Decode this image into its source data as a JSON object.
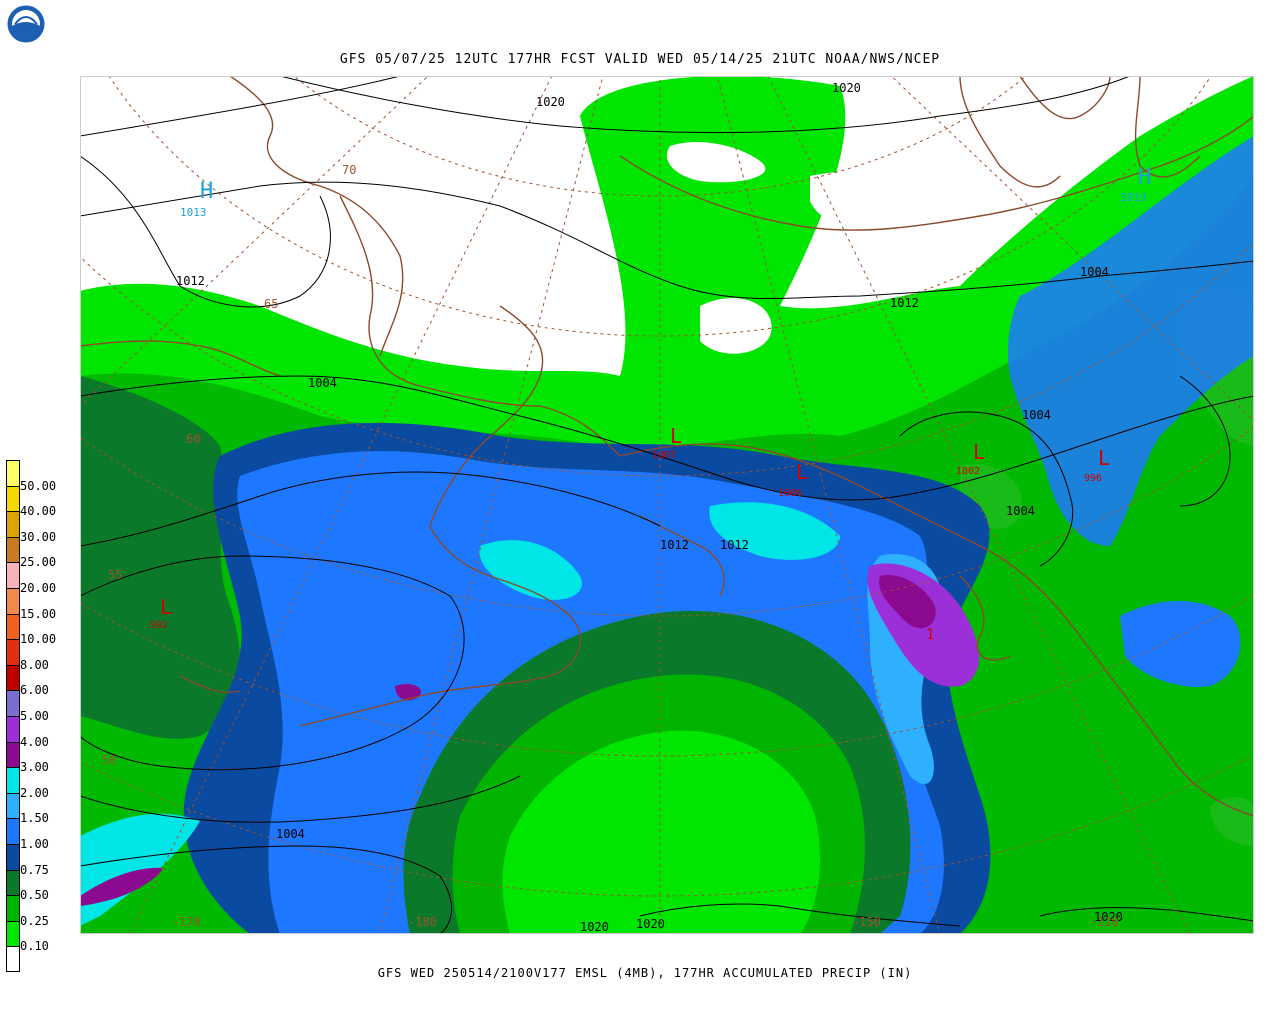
{
  "header": {
    "title": "GFS 05/07/25 12UTC 177HR FCST VALID WED 05/14/25 21UTC NOAA/NWS/NCEP",
    "logo_text": "NOAA"
  },
  "footer": {
    "caption": "GFS WED 250514/2100V177 EMSL (4MB), 177HR ACCUMULATED PRECIP (IN)"
  },
  "legend": {
    "bins": [
      {
        "label": "50.00",
        "color": "#ffff66"
      },
      {
        "label": "40.00",
        "color": "#f5d800"
      },
      {
        "label": "30.00",
        "color": "#d9a300"
      },
      {
        "label": "25.00",
        "color": "#c77b22"
      },
      {
        "label": "20.00",
        "color": "#f6b3b8"
      },
      {
        "label": "15.00",
        "color": "#f08a4b"
      },
      {
        "label": "10.00",
        "color": "#f06020"
      },
      {
        "label": "8.00",
        "color": "#e03010"
      },
      {
        "label": "6.00",
        "color": "#c00000"
      },
      {
        "label": "5.00",
        "color": "#7a6fd0"
      },
      {
        "label": "4.00",
        "color": "#9b30d8"
      },
      {
        "label": "3.00",
        "color": "#8b0a90"
      },
      {
        "label": "2.00",
        "color": "#00e6e6"
      },
      {
        "label": "1.50",
        "color": "#2fb0ff"
      },
      {
        "label": "1.00",
        "color": "#1e78ff"
      },
      {
        "label": "0.75",
        "color": "#0a4aa0"
      },
      {
        "label": "0.50",
        "color": "#0a7a2a"
      },
      {
        "label": "0.25",
        "color": "#00b400"
      },
      {
        "label": "0.10",
        "color": "#00e600"
      },
      {
        "label": "",
        "color": "#ffffff"
      }
    ]
  },
  "map": {
    "isobar_labels": [
      "1020",
      "1020",
      "1012",
      "1012",
      "1004",
      "1004",
      "1004",
      "1004",
      "1012",
      "1012",
      "1004",
      "1020",
      "1020",
      "1020"
    ],
    "highs": [
      {
        "symbol": "H",
        "value": "1013"
      },
      {
        "symbol": "H",
        "value": "1019"
      }
    ],
    "lows": [
      {
        "symbol": "L",
        "value": "1007"
      },
      {
        "symbol": "L",
        "value": "1006"
      },
      {
        "symbol": "L",
        "value": "1002"
      },
      {
        "symbol": "L",
        "value": "996"
      },
      {
        "symbol": "L",
        "value": "992"
      },
      {
        "symbol": "L",
        "value": "1"
      }
    ],
    "grid_labels": [
      "70",
      "65",
      "60",
      "55",
      "50",
      "-170",
      "-180",
      "-150",
      "-120"
    ],
    "colors": {
      "isobar": "#000000",
      "coastline": "#8b4a2b",
      "grid": "#a0522d",
      "low": "#d40000",
      "high": "#1ea0e0"
    }
  }
}
